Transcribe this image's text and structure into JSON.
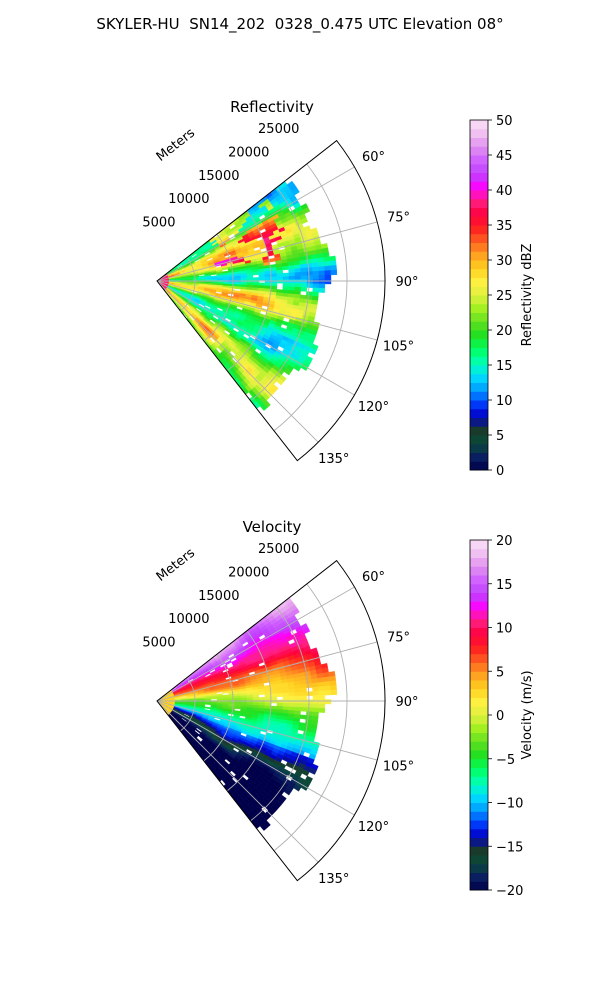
{
  "figure": {
    "title": "SKYLER-HU  SN14_202  0328_0.475 UTC Elevation 08°",
    "colors": {
      "reflectivity_stops": [
        "#00004a",
        "#0a2060",
        "#0a4a3a",
        "#1a3a2a",
        "#0000c8",
        "#0040ff",
        "#00a0ff",
        "#00e0ff",
        "#00ffb0",
        "#00ff60",
        "#20e020",
        "#60e020",
        "#a0f020",
        "#e0f040",
        "#fff040",
        "#ffd020",
        "#ffa020",
        "#ff6020",
        "#ff2020",
        "#ff0040",
        "#ff2080",
        "#ff00ff",
        "#c040ff",
        "#d060ff",
        "#e090f0",
        "#f0c0f0",
        "#fce0f8"
      ],
      "velocity_stops": [
        "#00004a",
        "#0a2060",
        "#0a4a3a",
        "#1a3a2a",
        "#0000c8",
        "#0040ff",
        "#00a0ff",
        "#00e0ff",
        "#00ffb0",
        "#00ff60",
        "#20e020",
        "#60e020",
        "#a0f020",
        "#e0f040",
        "#fff040",
        "#ffd020",
        "#ffa020",
        "#ff6020",
        "#ff2020",
        "#ff0040",
        "#ff2080",
        "#ff00ff",
        "#c040ff",
        "#d060ff",
        "#e090f0",
        "#f0c0f0",
        "#fce0f8"
      ]
    }
  },
  "chart_data": [
    {
      "type": "heatmap",
      "projection": "polar-sector",
      "title": "Reflectivity",
      "azimuth_ticks": [
        "60°",
        "75°",
        "90°",
        "105°",
        "120°",
        "135°"
      ],
      "azimuth_range_deg": [
        52,
        142
      ],
      "range_label": "Meters",
      "range_ticks": [
        "5000",
        "10000",
        "15000",
        "20000",
        "25000"
      ],
      "range_lim": [
        0,
        30000
      ],
      "colorbar": {
        "label": "Reflectivity dBZ",
        "ticks": [
          "0",
          "5",
          "10",
          "15",
          "20",
          "25",
          "30",
          "35",
          "40",
          "45",
          "50"
        ],
        "lim": [
          0,
          50
        ]
      },
      "grid": true
    },
    {
      "type": "heatmap",
      "projection": "polar-sector",
      "title": "Velocity",
      "azimuth_ticks": [
        "60°",
        "75°",
        "90°",
        "105°",
        "120°",
        "135°"
      ],
      "azimuth_range_deg": [
        52,
        142
      ],
      "range_label": "Meters",
      "range_ticks": [
        "5000",
        "10000",
        "15000",
        "20000",
        "25000"
      ],
      "range_lim": [
        0,
        30000
      ],
      "colorbar": {
        "label": "Velocity (m/s)",
        "ticks": [
          "20",
          "15",
          "10",
          "5",
          "0",
          "−5",
          "−10",
          "−15",
          "−20"
        ],
        "lim": [
          -20,
          20
        ]
      },
      "grid": true
    }
  ]
}
